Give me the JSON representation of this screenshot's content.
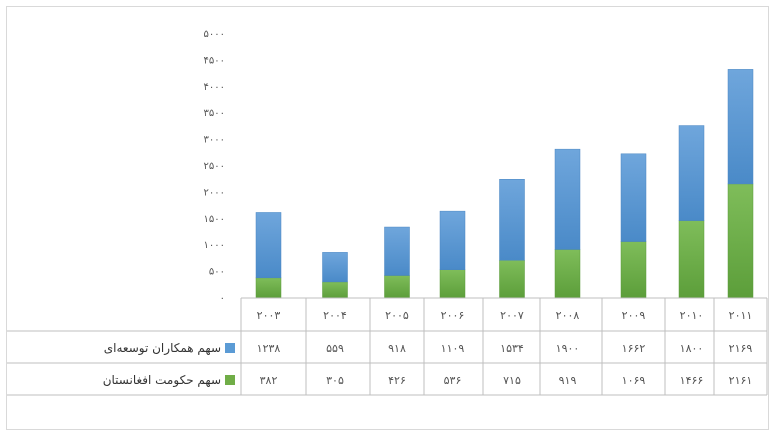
{
  "chart_data": {
    "type": "bar",
    "stacked": true,
    "categories": [
      "2003",
      "2004",
      "2005",
      "2006",
      "2007",
      "2008",
      "2009",
      "2010",
      "2011"
    ],
    "category_labels": [
      "۲۰۰۳",
      "۲۰۰۴",
      "۲۰۰۵",
      "۲۰۰۶",
      "۲۰۰۷",
      "۲۰۰۸",
      "۲۰۰۹",
      "۲۰۱۰",
      "۲۰۱۱"
    ],
    "series": [
      {
        "name": "سهم حکومت افغانستان",
        "color": "#70ad47",
        "values": [
          382,
          305,
          426,
          536,
          715,
          919,
          1069,
          1466,
          2161
        ],
        "value_labels": [
          "۳۸۲",
          "۳۰۵",
          "۴۲۶",
          "۵۳۶",
          "۷۱۵",
          "۹۱۹",
          "۱۰۶۹",
          "۱۴۶۶",
          "۲۱۶۱"
        ]
      },
      {
        "name": "سهم همکاران توسعه‌ای",
        "color": "#5b9bd5",
        "values": [
          1238,
          559,
          918,
          1109,
          1534,
          1900,
          1662,
          1800,
          2169
        ],
        "value_labels": [
          "۱۲۳۸",
          "۵۵۹",
          "۹۱۸",
          "۱۱۰۹",
          "۱۵۳۴",
          "۱۹۰۰",
          "۱۶۶۲",
          "۱۸۰۰",
          "۲۱۶۹"
        ]
      }
    ],
    "ylim": [
      0,
      5000
    ],
    "y_ticks": [
      0,
      500,
      1000,
      1500,
      2000,
      2500,
      3000,
      3500,
      4000,
      4500,
      5000
    ],
    "y_tick_labels": [
      "۰",
      "۵۰۰",
      "۱۰۰۰",
      "۱۵۰۰",
      "۲۰۰۰",
      "۲۵۰۰",
      "۳۰۰۰",
      "۳۵۰۰",
      "۴۰۰۰",
      "۴۵۰۰",
      "۵۰۰۰"
    ],
    "grid": false,
    "legend": "data-table",
    "data_table": true,
    "title": "",
    "xlabel": "",
    "ylabel": ""
  }
}
